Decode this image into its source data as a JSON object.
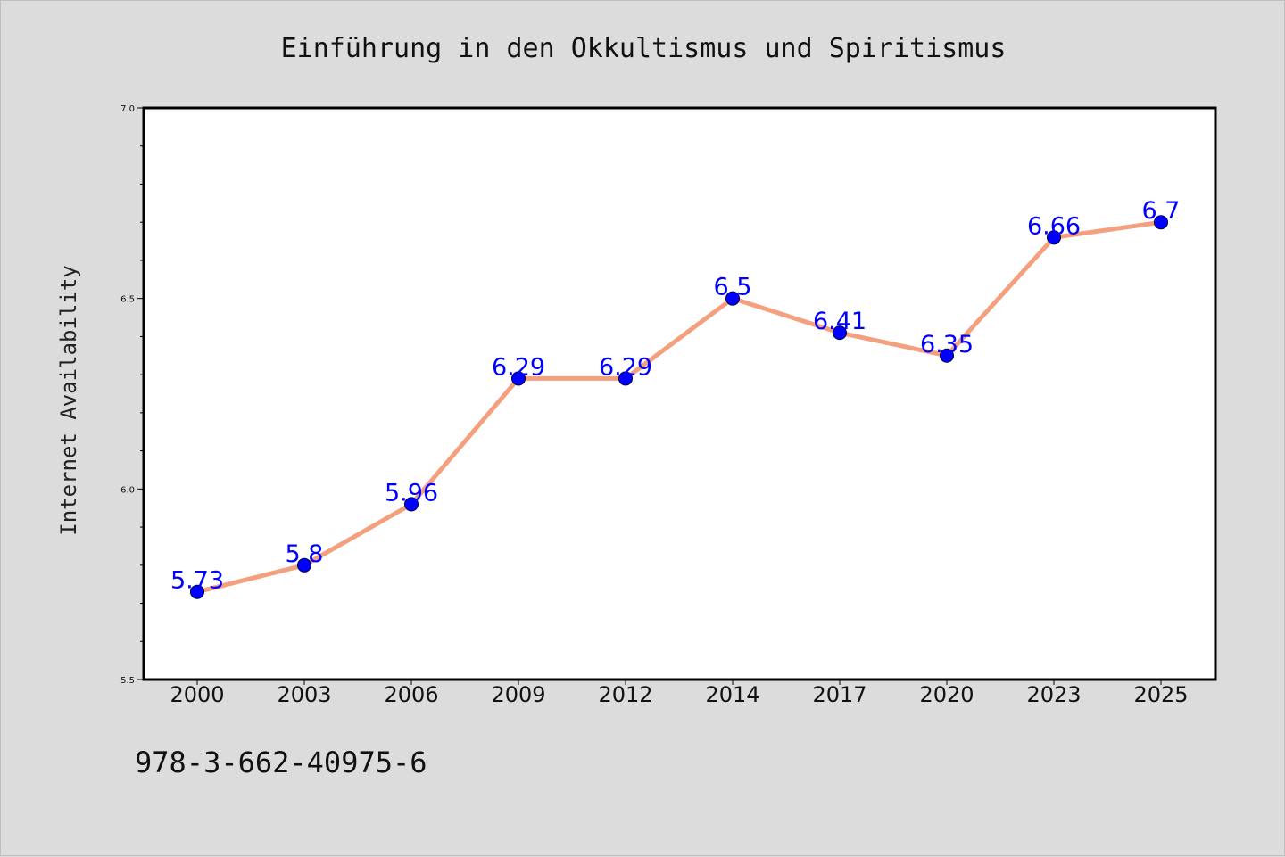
{
  "chart_data": {
    "type": "line",
    "title": "Einführung in den Okkultismus und Spiritismus",
    "xlabel": "",
    "ylabel": "Internet Availability",
    "categories": [
      "2000",
      "2003",
      "2006",
      "2009",
      "2012",
      "2014",
      "2017",
      "2020",
      "2023",
      "2025"
    ],
    "series": [
      {
        "values": [
          5.73,
          5.8,
          5.96,
          6.29,
          6.29,
          6.5,
          6.41,
          6.35,
          6.66,
          6.7
        ],
        "line_color": "#f4a07e",
        "marker_color": "#0000ff"
      }
    ],
    "data_labels": [
      "5.73",
      "5.8",
      "5.96",
      "6.29",
      "6.29",
      "6.5",
      "6.41",
      "6.35",
      "6.66",
      "6.7"
    ],
    "ylim": [
      5.5,
      7.0
    ],
    "y_ticks": [
      "5.5",
      "6.0",
      "6.5",
      "7.0"
    ],
    "grid": false,
    "legend": "none"
  },
  "footer": {
    "isbn": "978-3-662-40975-6"
  },
  "colors": {
    "background": "#dcdcdc",
    "plot_area": "#ffffff",
    "line": "#f4a07e",
    "marker": "#0000ff",
    "label": "#0000ff"
  }
}
